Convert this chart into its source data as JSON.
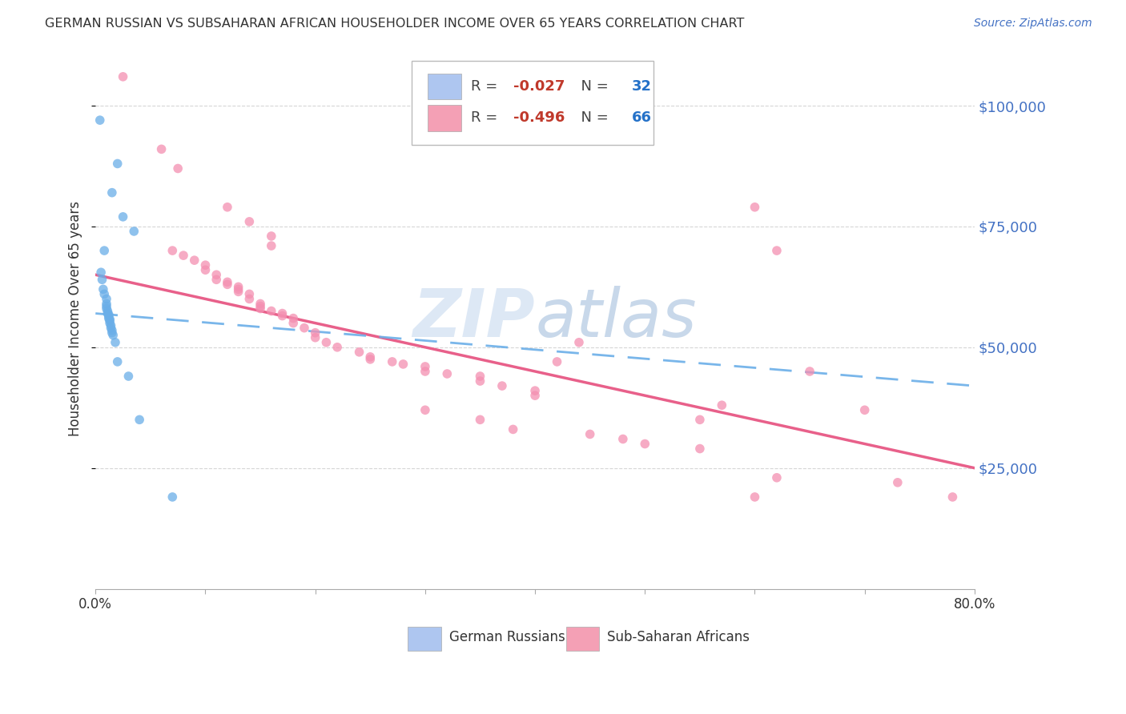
{
  "title": "GERMAN RUSSIAN VS SUBSAHARAN AFRICAN HOUSEHOLDER INCOME OVER 65 YEARS CORRELATION CHART",
  "source": "Source: ZipAtlas.com",
  "ylabel": "Householder Income Over 65 years",
  "ytick_labels": [
    "$25,000",
    "$50,000",
    "$75,000",
    "$100,000"
  ],
  "ytick_values": [
    25000,
    50000,
    75000,
    100000
  ],
  "ylim": [
    0,
    112000
  ],
  "xlim": [
    0.0,
    0.8
  ],
  "legend_entry1": {
    "R": "-0.027",
    "N": "32",
    "color": "#aec6f0"
  },
  "legend_entry2": {
    "R": "-0.496",
    "N": "66",
    "color": "#f4a0b5"
  },
  "blue_color": "#6aaee8",
  "pink_color": "#f48fb1",
  "trendline_blue_color": "#6aaee8",
  "trendline_pink_color": "#e8608a",
  "watermark_zip": "ZIP",
  "watermark_atlas": "atlas",
  "watermark_color_zip": "#dce8f5",
  "watermark_color_atlas": "#c8d8e8",
  "german_russian_points": [
    [
      0.004,
      97000
    ],
    [
      0.02,
      88000
    ],
    [
      0.015,
      82000
    ],
    [
      0.025,
      77000
    ],
    [
      0.035,
      74000
    ],
    [
      0.008,
      70000
    ],
    [
      0.005,
      65500
    ],
    [
      0.006,
      64000
    ],
    [
      0.007,
      62000
    ],
    [
      0.008,
      61000
    ],
    [
      0.01,
      60000
    ],
    [
      0.01,
      59000
    ],
    [
      0.01,
      58500
    ],
    [
      0.01,
      58000
    ],
    [
      0.011,
      57500
    ],
    [
      0.011,
      57000
    ],
    [
      0.012,
      56800
    ],
    [
      0.012,
      56500
    ],
    [
      0.012,
      56000
    ],
    [
      0.013,
      55800
    ],
    [
      0.013,
      55500
    ],
    [
      0.013,
      55000
    ],
    [
      0.014,
      54500
    ],
    [
      0.014,
      54000
    ],
    [
      0.015,
      53500
    ],
    [
      0.015,
      53000
    ],
    [
      0.016,
      52500
    ],
    [
      0.018,
      51000
    ],
    [
      0.02,
      47000
    ],
    [
      0.03,
      44000
    ],
    [
      0.04,
      35000
    ],
    [
      0.07,
      19000
    ]
  ],
  "subsaharan_points": [
    [
      0.025,
      106000
    ],
    [
      0.06,
      91000
    ],
    [
      0.075,
      87000
    ],
    [
      0.12,
      79000
    ],
    [
      0.14,
      76000
    ],
    [
      0.16,
      73000
    ],
    [
      0.16,
      71000
    ],
    [
      0.07,
      70000
    ],
    [
      0.08,
      69000
    ],
    [
      0.09,
      68000
    ],
    [
      0.1,
      67000
    ],
    [
      0.1,
      66000
    ],
    [
      0.11,
      65000
    ],
    [
      0.11,
      64000
    ],
    [
      0.12,
      63500
    ],
    [
      0.12,
      63000
    ],
    [
      0.13,
      62500
    ],
    [
      0.13,
      62000
    ],
    [
      0.13,
      61500
    ],
    [
      0.14,
      61000
    ],
    [
      0.14,
      60000
    ],
    [
      0.15,
      59000
    ],
    [
      0.15,
      58500
    ],
    [
      0.15,
      58000
    ],
    [
      0.16,
      57500
    ],
    [
      0.17,
      57000
    ],
    [
      0.17,
      56500
    ],
    [
      0.18,
      56000
    ],
    [
      0.18,
      55000
    ],
    [
      0.19,
      54000
    ],
    [
      0.2,
      53000
    ],
    [
      0.2,
      52000
    ],
    [
      0.21,
      51000
    ],
    [
      0.22,
      50000
    ],
    [
      0.24,
      49000
    ],
    [
      0.25,
      48000
    ],
    [
      0.25,
      47500
    ],
    [
      0.27,
      47000
    ],
    [
      0.28,
      46500
    ],
    [
      0.3,
      46000
    ],
    [
      0.3,
      45000
    ],
    [
      0.32,
      44500
    ],
    [
      0.35,
      44000
    ],
    [
      0.35,
      43000
    ],
    [
      0.37,
      42000
    ],
    [
      0.4,
      41000
    ],
    [
      0.4,
      40000
    ],
    [
      0.42,
      47000
    ],
    [
      0.44,
      51000
    ],
    [
      0.3,
      37000
    ],
    [
      0.35,
      35000
    ],
    [
      0.38,
      33000
    ],
    [
      0.45,
      32000
    ],
    [
      0.48,
      31000
    ],
    [
      0.5,
      30000
    ],
    [
      0.55,
      29000
    ],
    [
      0.57,
      38000
    ],
    [
      0.6,
      19000
    ],
    [
      0.62,
      23000
    ],
    [
      0.55,
      35000
    ],
    [
      0.6,
      79000
    ],
    [
      0.62,
      70000
    ],
    [
      0.65,
      45000
    ],
    [
      0.7,
      37000
    ],
    [
      0.73,
      22000
    ],
    [
      0.78,
      19000
    ]
  ]
}
